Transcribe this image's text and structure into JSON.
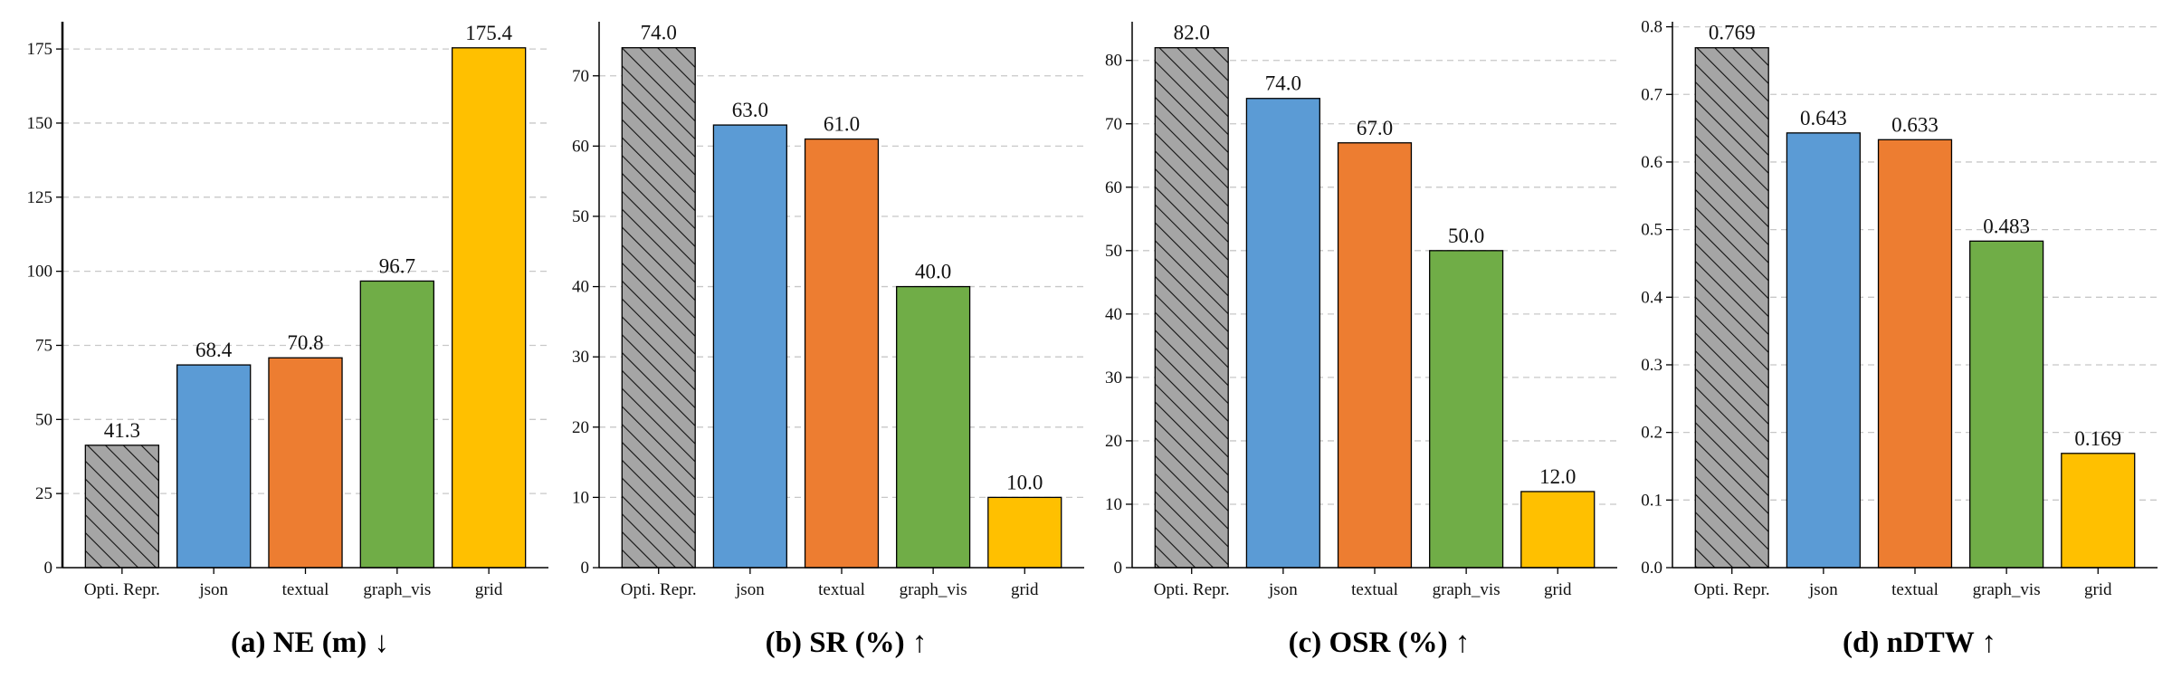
{
  "chart_data": [
    {
      "type": "bar",
      "title": "(a) NE (m)  ↓",
      "categories": [
        "Opti. Repr.",
        "json",
        "textual",
        "graph_vis",
        "grid"
      ],
      "values": [
        41.3,
        68.4,
        70.8,
        96.7,
        175.4
      ],
      "value_labels": [
        "41.3",
        "68.4",
        "70.8",
        "96.7",
        "175.4"
      ],
      "ylim": [
        0,
        184.2
      ],
      "yticks": [
        0,
        25,
        50,
        75,
        100,
        125,
        150,
        175
      ],
      "ytick_labels": [
        "0",
        "25",
        "50",
        "75",
        "100",
        "125",
        "150",
        "175"
      ],
      "grid": "y-dashed",
      "xlabel": "",
      "ylabel": ""
    },
    {
      "type": "bar",
      "title": "(b) SR (%)  ↑",
      "categories": [
        "Opti. Repr.",
        "json",
        "textual",
        "graph_vis",
        "grid"
      ],
      "values": [
        74.0,
        63.0,
        61.0,
        40.0,
        10.0
      ],
      "value_labels": [
        "74.0",
        "63.0",
        "61.0",
        "40.0",
        "10.0"
      ],
      "ylim": [
        0,
        77.7
      ],
      "yticks": [
        0,
        10,
        20,
        30,
        40,
        50,
        60,
        70
      ],
      "ytick_labels": [
        "0",
        "10",
        "20",
        "30",
        "40",
        "50",
        "60",
        "70"
      ],
      "grid": "y-dashed",
      "xlabel": "",
      "ylabel": ""
    },
    {
      "type": "bar",
      "title": "(c) OSR (%)  ↑",
      "categories": [
        "Opti. Repr.",
        "json",
        "textual",
        "graph_vis",
        "grid"
      ],
      "values": [
        82.0,
        74.0,
        67.0,
        50.0,
        12.0
      ],
      "value_labels": [
        "82.0",
        "74.0",
        "67.0",
        "50.0",
        "12.0"
      ],
      "ylim": [
        0,
        86.1
      ],
      "yticks": [
        0,
        10,
        20,
        30,
        40,
        50,
        60,
        70,
        80
      ],
      "ytick_labels": [
        "0",
        "10",
        "20",
        "30",
        "40",
        "50",
        "60",
        "70",
        "80"
      ],
      "grid": "y-dashed",
      "xlabel": "",
      "ylabel": ""
    },
    {
      "type": "bar",
      "title": "(d) nDTW  ↑",
      "categories": [
        "Opti. Repr.",
        "json",
        "textual",
        "graph_vis",
        "grid"
      ],
      "values": [
        0.769,
        0.643,
        0.633,
        0.483,
        0.169
      ],
      "value_labels": [
        "0.769",
        "0.643",
        "0.633",
        "0.483",
        "0.169"
      ],
      "ylim": [
        0,
        0.8075
      ],
      "yticks": [
        0.0,
        0.1,
        0.2,
        0.3,
        0.4,
        0.5,
        0.6,
        0.7,
        0.8
      ],
      "ytick_labels": [
        "0.0",
        "0.1",
        "0.2",
        "0.3",
        "0.4",
        "0.5",
        "0.6",
        "0.7",
        "0.8"
      ],
      "grid": "y-dashed",
      "xlabel": "",
      "ylabel": ""
    }
  ],
  "colors": {
    "Opti. Repr.": "#a5a5a5",
    "json": "#5b9bd5",
    "textual": "#ed7d31",
    "graph_vis": "#70ad47",
    "grid": "#ffc000"
  },
  "hatched_category": "Opti. Repr."
}
